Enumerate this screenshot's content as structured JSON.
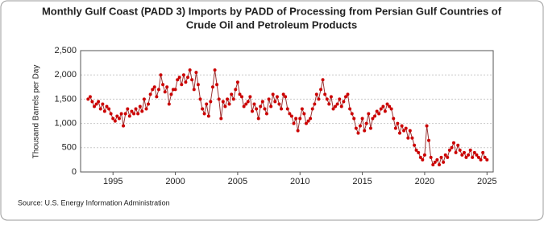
{
  "chart_data": {
    "type": "line",
    "title": "Monthly Gulf Coast (PADD 3) Imports by PADD of Processing from Persian Gulf Countries of",
    "subtitle": "Crude Oil and Petroleum Products",
    "ylabel": "Thousand Barrels per Day",
    "source": "Source: U.S. Energy Information Administration",
    "color": "#cc0000",
    "line_color": "#993333",
    "grid": true,
    "xlim": [
      1992.4,
      2025.5
    ],
    "xticks": [
      1995,
      2000,
      2005,
      2010,
      2015,
      2020,
      2025
    ],
    "ylim": [
      0,
      2500
    ],
    "yticks": [
      0,
      500,
      {
        "value": 1000,
        "label": "1,000"
      },
      {
        "value": 1500,
        "label": "1,500"
      },
      {
        "value": 2000,
        "label": "2,000"
      },
      {
        "value": 2500,
        "label": "2,500"
      }
    ],
    "x": [
      1993,
      1993.17,
      1993.33,
      1993.5,
      1993.67,
      1993.83,
      1994,
      1994.17,
      1994.33,
      1994.5,
      1994.67,
      1994.83,
      1995,
      1995.17,
      1995.33,
      1995.5,
      1995.67,
      1995.83,
      1996,
      1996.17,
      1996.33,
      1996.5,
      1996.67,
      1996.83,
      1997,
      1997.17,
      1997.33,
      1997.5,
      1997.67,
      1997.83,
      1998,
      1998.17,
      1998.33,
      1998.5,
      1998.67,
      1998.83,
      1999,
      1999.17,
      1999.33,
      1999.5,
      1999.67,
      1999.83,
      2000,
      2000.17,
      2000.33,
      2000.5,
      2000.67,
      2000.83,
      2001,
      2001.17,
      2001.33,
      2001.5,
      2001.67,
      2001.83,
      2002,
      2002.17,
      2002.33,
      2002.5,
      2002.67,
      2002.83,
      2003,
      2003.17,
      2003.33,
      2003.5,
      2003.67,
      2003.83,
      2004,
      2004.17,
      2004.33,
      2004.5,
      2004.67,
      2004.83,
      2005,
      2005.17,
      2005.33,
      2005.5,
      2005.67,
      2005.83,
      2006,
      2006.17,
      2006.33,
      2006.5,
      2006.67,
      2006.83,
      2007,
      2007.17,
      2007.33,
      2007.5,
      2007.67,
      2007.83,
      2008,
      2008.17,
      2008.33,
      2008.5,
      2008.67,
      2008.83,
      2009,
      2009.17,
      2009.33,
      2009.5,
      2009.67,
      2009.83,
      2010,
      2010.17,
      2010.33,
      2010.5,
      2010.67,
      2010.83,
      2011,
      2011.17,
      2011.33,
      2011.5,
      2011.67,
      2011.83,
      2012,
      2012.17,
      2012.33,
      2012.5,
      2012.67,
      2012.83,
      2013,
      2013.17,
      2013.33,
      2013.5,
      2013.67,
      2013.83,
      2014,
      2014.17,
      2014.33,
      2014.5,
      2014.67,
      2014.83,
      2015,
      2015.17,
      2015.33,
      2015.5,
      2015.67,
      2015.83,
      2016,
      2016.17,
      2016.33,
      2016.5,
      2016.67,
      2016.83,
      2017,
      2017.17,
      2017.33,
      2017.5,
      2017.67,
      2017.83,
      2018,
      2018.17,
      2018.33,
      2018.5,
      2018.67,
      2018.83,
      2019,
      2019.17,
      2019.33,
      2019.5,
      2019.67,
      2019.83,
      2020,
      2020.17,
      2020.33,
      2020.5,
      2020.67,
      2020.83,
      2021,
      2021.17,
      2021.33,
      2021.5,
      2021.67,
      2021.83,
      2022,
      2022.17,
      2022.33,
      2022.5,
      2022.67,
      2022.83,
      2023,
      2023.17,
      2023.33,
      2023.5,
      2023.67,
      2023.83,
      2024,
      2024.17,
      2024.33,
      2024.5,
      2024.67,
      2024.83,
      2025
    ],
    "values": [
      1500,
      1550,
      1450,
      1350,
      1400,
      1450,
      1300,
      1400,
      1250,
      1350,
      1300,
      1200,
      1100,
      1050,
      1150,
      1100,
      1200,
      950,
      1200,
      1300,
      1150,
      1250,
      1200,
      1300,
      1200,
      1350,
      1250,
      1500,
      1300,
      1400,
      1600,
      1700,
      1750,
      1550,
      1700,
      2000,
      1800,
      1650,
      1750,
      1400,
      1600,
      1700,
      1700,
      1900,
      1950,
      1800,
      2000,
      1850,
      1950,
      2100,
      1900,
      1700,
      2050,
      1800,
      1500,
      1300,
      1200,
      1400,
      1150,
      1450,
      1750,
      2100,
      1800,
      1500,
      1100,
      1450,
      1350,
      1500,
      1400,
      1600,
      1500,
      1700,
      1850,
      1600,
      1550,
      1350,
      1400,
      1450,
      1550,
      1250,
      1400,
      1300,
      1100,
      1350,
      1450,
      1300,
      1200,
      1500,
      1350,
      1600,
      1450,
      1550,
      1400,
      1300,
      1600,
      1550,
      1300,
      1200,
      1150,
      1000,
      1100,
      850,
      1100,
      1300,
      1200,
      1000,
      1050,
      1100,
      1300,
      1400,
      1600,
      1500,
      1700,
      1900,
      1600,
      1500,
      1400,
      1550,
      1300,
      1350,
      1400,
      1500,
      1350,
      1450,
      1550,
      1600,
      1300,
      1200,
      1100,
      900,
      800,
      950,
      1100,
      850,
      1000,
      1200,
      900,
      1100,
      1150,
      1250,
      1200,
      1300,
      1350,
      1250,
      1400,
      1350,
      1300,
      1100,
      900,
      1000,
      800,
      950,
      850,
      900,
      700,
      850,
      700,
      550,
      450,
      400,
      300,
      250,
      350,
      950,
      650,
      300,
      150,
      200,
      250,
      150,
      300,
      200,
      350,
      300,
      450,
      500,
      600,
      400,
      550,
      450,
      350,
      400,
      300,
      350,
      450,
      300,
      400,
      350,
      300,
      250,
      400,
      300,
      250
    ]
  }
}
